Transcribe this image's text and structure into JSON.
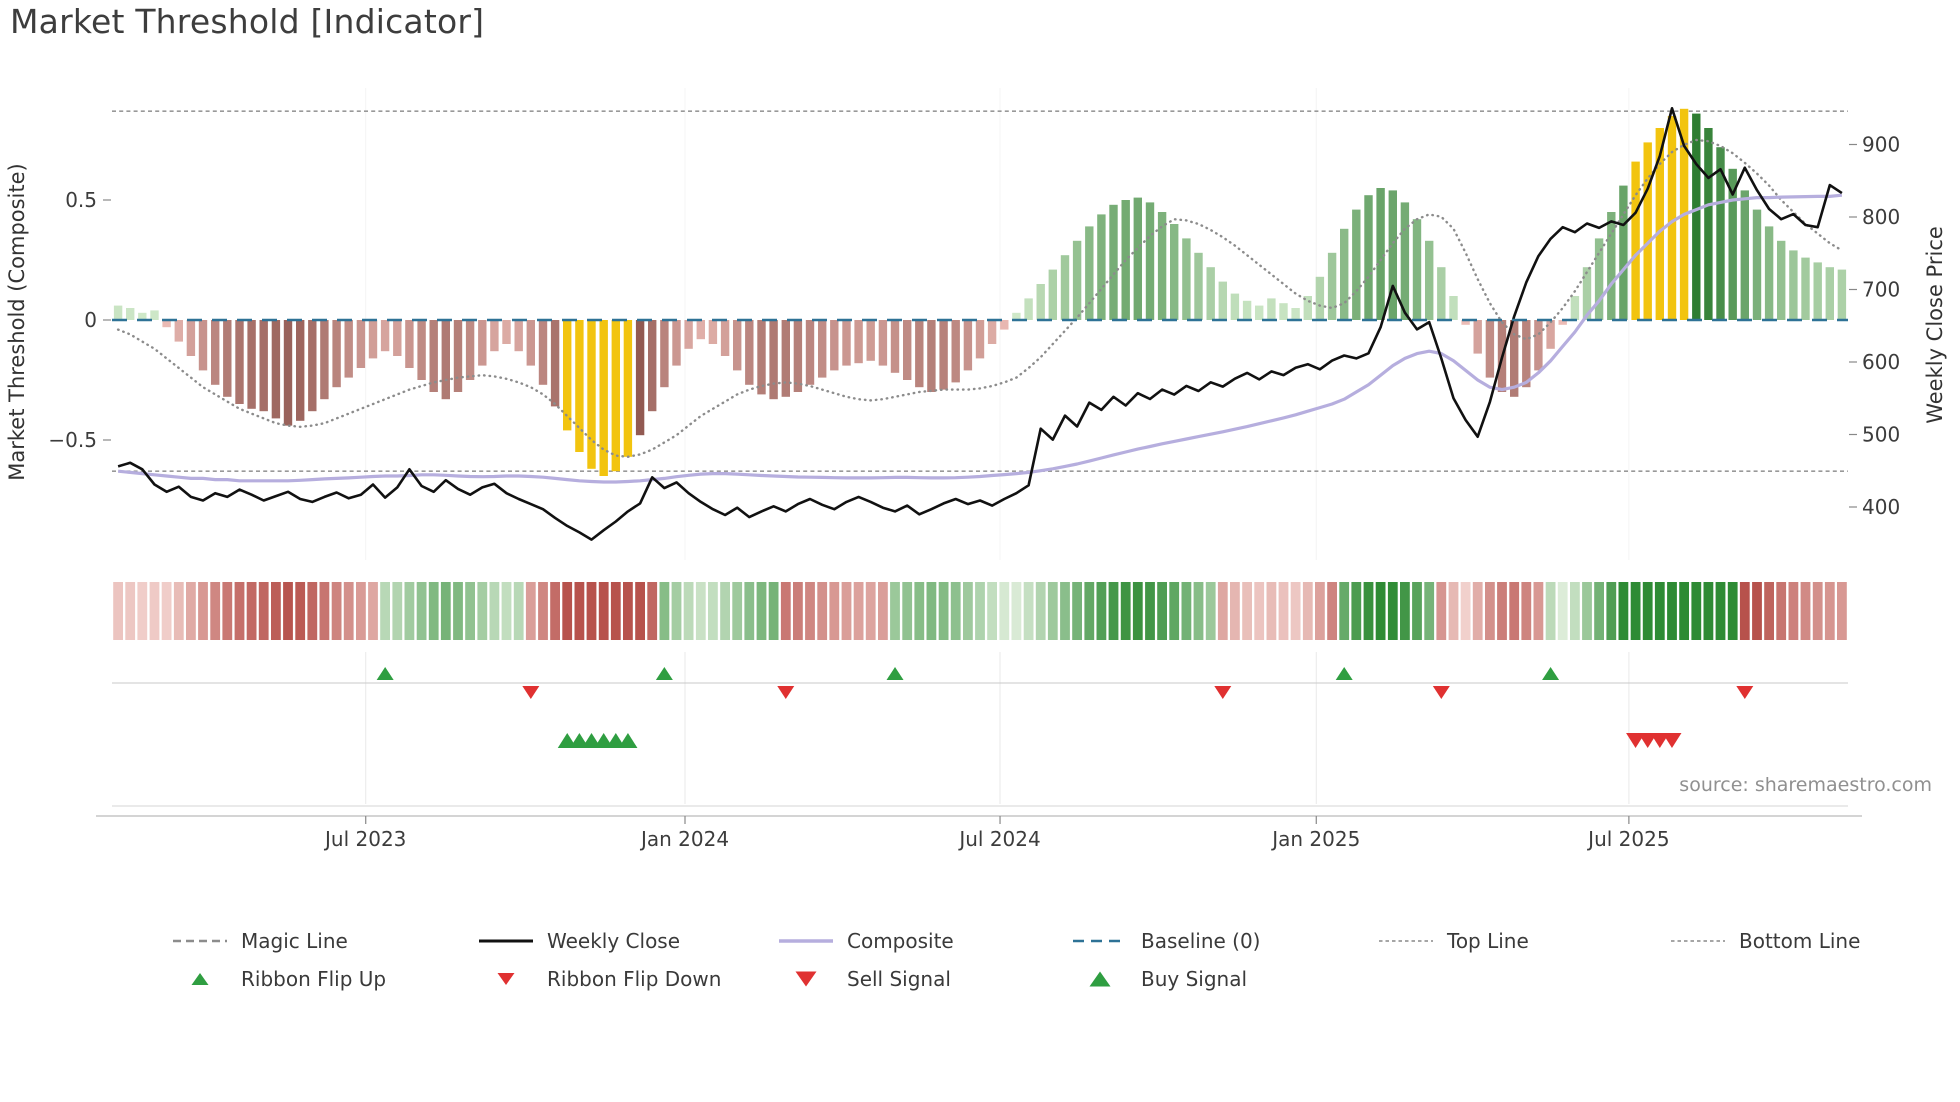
{
  "title": "Market Threshold [Indicator]",
  "source_note": "source: sharemaestro.com",
  "colors": {
    "bar_positive_dark": "#2e7d32",
    "bar_positive_light": "#d5ecce",
    "bar_negative_dark": "#7a4038",
    "bar_negative_light": "#f0c0ba",
    "bar_highlight": "#f2c40f",
    "weekly_close": "#111111",
    "composite": "#b6aede",
    "magic_line": "#8c8c8c",
    "baseline": "#2e7296",
    "top_bottom": "#999999",
    "buy": "#2f9e41",
    "sell": "#e03131",
    "ribbon_green_dark": "#2e8b34",
    "ribbon_green_light": "#e3f0de",
    "ribbon_red_dark": "#b7524c",
    "ribbon_red_light": "#f4d6d2"
  },
  "axes": {
    "left_label": "Market Threshold (Composite)",
    "right_label": "Weekly Close Price",
    "left_ticks": [
      {
        "value": 0.5,
        "label": "0.5"
      },
      {
        "value": 0,
        "label": "0"
      },
      {
        "value": -0.5,
        "label": "−0.5"
      }
    ],
    "right_ticks": [
      {
        "value": 900,
        "label": "900"
      },
      {
        "value": 800,
        "label": "800"
      },
      {
        "value": 700,
        "label": "700"
      },
      {
        "value": 600,
        "label": "600"
      },
      {
        "value": 500,
        "label": "500"
      },
      {
        "value": 400,
        "label": "400"
      }
    ],
    "x_ticks": [
      {
        "week": 20.4,
        "label": "Jul 2023"
      },
      {
        "week": 46.7,
        "label": "Jan 2024"
      },
      {
        "week": 72.65,
        "label": "Jul 2024"
      },
      {
        "week": 98.7,
        "label": "Jan 2025"
      },
      {
        "week": 124.45,
        "label": "Jul 2025"
      }
    ]
  },
  "chart_data": {
    "type": "bar+line",
    "frequency": "weekly",
    "n_points": 143,
    "baseline": 0,
    "top_line": 0.87,
    "bottom_line": -0.63,
    "left_axis_range": [
      -0.98,
      0.98
    ],
    "right_axis_range": [
      330,
      960
    ],
    "legend_position": "bottom",
    "series": [
      {
        "name": "Market Threshold (Composite) histogram",
        "type": "bar",
        "axis": "left",
        "values": [
          0.06,
          0.05,
          0.03,
          0.04,
          -0.03,
          -0.09,
          -0.15,
          -0.21,
          -0.27,
          -0.32,
          -0.35,
          -0.37,
          -0.38,
          -0.41,
          -0.44,
          -0.42,
          -0.38,
          -0.33,
          -0.28,
          -0.24,
          -0.2,
          -0.16,
          -0.13,
          -0.15,
          -0.2,
          -0.25,
          -0.3,
          -0.33,
          -0.3,
          -0.25,
          -0.19,
          -0.13,
          -0.1,
          -0.13,
          -0.19,
          -0.27,
          -0.36,
          -0.46,
          -0.55,
          -0.62,
          -0.65,
          -0.63,
          -0.57,
          -0.48,
          -0.38,
          -0.28,
          -0.19,
          -0.12,
          -0.08,
          -0.1,
          -0.15,
          -0.21,
          -0.27,
          -0.31,
          -0.33,
          -0.32,
          -0.3,
          -0.27,
          -0.24,
          -0.21,
          -0.19,
          -0.18,
          -0.17,
          -0.19,
          -0.22,
          -0.25,
          -0.28,
          -0.3,
          -0.29,
          -0.26,
          -0.21,
          -0.16,
          -0.1,
          -0.04,
          0.03,
          0.09,
          0.15,
          0.21,
          0.27,
          0.33,
          0.39,
          0.44,
          0.48,
          0.5,
          0.51,
          0.49,
          0.45,
          0.4,
          0.34,
          0.28,
          0.22,
          0.16,
          0.11,
          0.08,
          0.06,
          0.09,
          0.07,
          0.05,
          0.1,
          0.18,
          0.28,
          0.38,
          0.46,
          0.52,
          0.55,
          0.54,
          0.49,
          0.42,
          0.33,
          0.22,
          0.1,
          -0.02,
          -0.14,
          -0.24,
          -0.3,
          -0.32,
          -0.28,
          -0.21,
          -0.12,
          -0.02,
          0.1,
          0.22,
          0.34,
          0.45,
          0.56,
          0.66,
          0.74,
          0.8,
          0.85,
          0.88,
          0.86,
          0.8,
          0.72,
          0.63,
          0.54,
          0.46,
          0.39,
          0.33,
          0.29,
          0.26,
          0.24,
          0.22,
          0.21
        ]
      },
      {
        "name": "Magic Line",
        "type": "line",
        "style": "dotted",
        "axis": "left",
        "values": [
          -0.04,
          -0.06,
          -0.09,
          -0.12,
          -0.16,
          -0.2,
          -0.24,
          -0.28,
          -0.31,
          -0.34,
          -0.37,
          -0.39,
          -0.41,
          -0.43,
          -0.44,
          -0.445,
          -0.44,
          -0.43,
          -0.41,
          -0.39,
          -0.37,
          -0.35,
          -0.33,
          -0.31,
          -0.29,
          -0.275,
          -0.26,
          -0.25,
          -0.24,
          -0.235,
          -0.23,
          -0.235,
          -0.245,
          -0.26,
          -0.28,
          -0.31,
          -0.35,
          -0.4,
          -0.45,
          -0.5,
          -0.54,
          -0.565,
          -0.57,
          -0.56,
          -0.54,
          -0.51,
          -0.48,
          -0.44,
          -0.4,
          -0.37,
          -0.34,
          -0.31,
          -0.29,
          -0.275,
          -0.265,
          -0.26,
          -0.265,
          -0.275,
          -0.29,
          -0.305,
          -0.32,
          -0.33,
          -0.335,
          -0.33,
          -0.32,
          -0.31,
          -0.3,
          -0.295,
          -0.29,
          -0.29,
          -0.29,
          -0.285,
          -0.275,
          -0.26,
          -0.24,
          -0.2,
          -0.155,
          -0.1,
          -0.045,
          0.01,
          0.07,
          0.13,
          0.19,
          0.25,
          0.3,
          0.35,
          0.39,
          0.42,
          0.415,
          0.4,
          0.375,
          0.345,
          0.31,
          0.27,
          0.23,
          0.19,
          0.15,
          0.11,
          0.08,
          0.06,
          0.05,
          0.07,
          0.12,
          0.18,
          0.25,
          0.32,
          0.38,
          0.42,
          0.44,
          0.43,
          0.38,
          0.28,
          0.17,
          0.07,
          -0.01,
          -0.06,
          -0.08,
          -0.06,
          -0.01,
          0.05,
          0.12,
          0.2,
          0.28,
          0.36,
          0.44,
          0.52,
          0.59,
          0.65,
          0.7,
          0.73,
          0.75,
          0.745,
          0.725,
          0.695,
          0.655,
          0.61,
          0.56,
          0.5,
          0.45,
          0.4,
          0.36,
          0.32,
          0.29
        ]
      },
      {
        "name": "Composite",
        "type": "line",
        "axis": "left",
        "values": [
          -0.63,
          -0.635,
          -0.64,
          -0.645,
          -0.65,
          -0.655,
          -0.66,
          -0.66,
          -0.665,
          -0.665,
          -0.67,
          -0.67,
          -0.67,
          -0.67,
          -0.67,
          -0.668,
          -0.665,
          -0.662,
          -0.66,
          -0.658,
          -0.655,
          -0.652,
          -0.65,
          -0.65,
          -0.648,
          -0.645,
          -0.645,
          -0.647,
          -0.65,
          -0.652,
          -0.653,
          -0.652,
          -0.65,
          -0.65,
          -0.652,
          -0.655,
          -0.66,
          -0.665,
          -0.67,
          -0.673,
          -0.675,
          -0.675,
          -0.673,
          -0.67,
          -0.665,
          -0.66,
          -0.653,
          -0.647,
          -0.642,
          -0.64,
          -0.64,
          -0.642,
          -0.645,
          -0.648,
          -0.65,
          -0.652,
          -0.654,
          -0.655,
          -0.656,
          -0.657,
          -0.658,
          -0.658,
          -0.658,
          -0.657,
          -0.656,
          -0.656,
          -0.657,
          -0.658,
          -0.658,
          -0.657,
          -0.655,
          -0.652,
          -0.648,
          -0.644,
          -0.64,
          -0.635,
          -0.628,
          -0.62,
          -0.61,
          -0.6,
          -0.588,
          -0.575,
          -0.562,
          -0.55,
          -0.538,
          -0.527,
          -0.516,
          -0.506,
          -0.496,
          -0.486,
          -0.476,
          -0.466,
          -0.455,
          -0.444,
          -0.432,
          -0.42,
          -0.408,
          -0.395,
          -0.38,
          -0.365,
          -0.35,
          -0.33,
          -0.3,
          -0.27,
          -0.23,
          -0.19,
          -0.16,
          -0.14,
          -0.13,
          -0.14,
          -0.17,
          -0.21,
          -0.25,
          -0.28,
          -0.29,
          -0.28,
          -0.26,
          -0.22,
          -0.17,
          -0.11,
          -0.05,
          0.02,
          0.08,
          0.15,
          0.21,
          0.27,
          0.32,
          0.37,
          0.41,
          0.44,
          0.46,
          0.48,
          0.49,
          0.5,
          0.505,
          0.51,
          0.51,
          0.512,
          0.513,
          0.514,
          0.515,
          0.515,
          0.52
        ]
      },
      {
        "name": "Weekly Close",
        "type": "line",
        "axis": "right",
        "values": [
          456,
          461,
          452,
          431,
          421,
          428,
          414,
          409,
          419,
          414,
          424,
          417,
          409,
          415,
          421,
          411,
          407,
          414,
          420,
          412,
          417,
          431,
          413,
          427,
          452,
          429,
          421,
          437,
          425,
          417,
          427,
          432,
          419,
          411,
          404,
          397,
          385,
          374,
          365,
          355,
          368,
          380,
          394,
          405,
          441,
          426,
          434,
          419,
          407,
          397,
          389,
          399,
          386,
          394,
          401,
          394,
          404,
          411,
          403,
          397,
          407,
          414,
          407,
          399,
          394,
          402,
          390,
          397,
          405,
          411,
          404,
          409,
          402,
          411,
          419,
          430,
          508,
          493,
          526,
          511,
          544,
          534,
          552,
          540,
          557,
          549,
          562,
          555,
          567,
          560,
          572,
          566,
          577,
          585,
          576,
          587,
          582,
          592,
          597,
          590,
          602,
          609,
          605,
          612,
          648,
          705,
          668,
          645,
          655,
          605,
          550,
          520,
          497,
          545,
          606,
          663,
          710,
          746,
          770,
          786,
          779,
          791,
          785,
          794,
          789,
          806,
          839,
          884,
          950,
          898,
          873,
          854,
          866,
          831,
          868,
          837,
          811,
          797,
          804,
          789,
          786,
          844,
          833
        ]
      }
    ],
    "highlighted_bar_weeks": [
      37,
      38,
      39,
      40,
      41,
      42,
      125,
      126,
      127,
      128,
      129
    ],
    "ribbon_segments": [
      {
        "state": "red",
        "from": 0,
        "to": 22
      },
      {
        "state": "green",
        "from": 22,
        "to": 34
      },
      {
        "state": "red",
        "from": 34,
        "to": 45
      },
      {
        "state": "green",
        "from": 45,
        "to": 55
      },
      {
        "state": "red",
        "from": 55,
        "to": 64
      },
      {
        "state": "green",
        "from": 64,
        "to": 91
      },
      {
        "state": "red",
        "from": 91,
        "to": 101
      },
      {
        "state": "green",
        "from": 101,
        "to": 109
      },
      {
        "state": "red",
        "from": 109,
        "to": 118
      },
      {
        "state": "green",
        "from": 118,
        "to": 134
      },
      {
        "state": "red",
        "from": 134,
        "to": 143
      }
    ],
    "signals": {
      "ribbon_flip_up_weeks": [
        22,
        45,
        64,
        101,
        118
      ],
      "ribbon_flip_down_weeks": [
        34,
        55,
        91,
        109,
        134
      ],
      "buy_signal_weeks": [
        37,
        38,
        39,
        40,
        41,
        42
      ],
      "sell_signal_weeks": [
        125,
        126,
        127,
        128
      ]
    }
  },
  "legend": {
    "row1": [
      {
        "label": "Magic Line",
        "swatch": "dashed-gray"
      },
      {
        "label": "Weekly Close",
        "swatch": "solid-black"
      },
      {
        "label": "Composite",
        "swatch": "solid-lavender"
      },
      {
        "label": "Baseline (0)",
        "swatch": "dashed-blue"
      },
      {
        "label": "Top Line",
        "swatch": "dotted-gray"
      },
      {
        "label": "Bottom Line",
        "swatch": "dotted-gray"
      }
    ],
    "row2": [
      {
        "label": "Ribbon Flip Up",
        "swatch": "triangle-up-green"
      },
      {
        "label": "Ribbon Flip Down",
        "swatch": "triangle-down-red"
      },
      {
        "label": "Sell Signal",
        "swatch": "triangle-down-red-large"
      },
      {
        "label": "Buy Signal",
        "swatch": "triangle-up-green-large"
      }
    ]
  }
}
